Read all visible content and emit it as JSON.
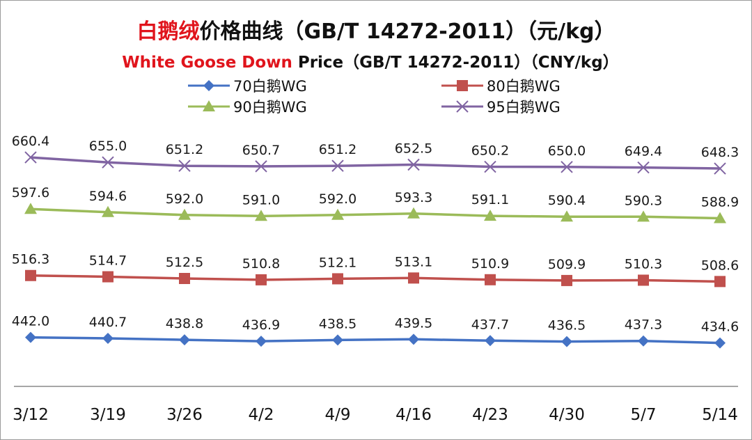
{
  "chart_data": {
    "type": "line",
    "title": {
      "line1_red": "白鹅绒",
      "line1_rest": "价格曲线（GB/T 14272-2011）（元/kg）",
      "line2_red": "White Goose Down",
      "line2_rest": " Price（GB/T 14272-2011）（CNY/kg）"
    },
    "categories": [
      "3/12",
      "3/19",
      "3/26",
      "4/2",
      "4/9",
      "4/16",
      "4/23",
      "4/30",
      "5/7",
      "5/14"
    ],
    "grid": false,
    "legend_position": "top",
    "ylim": [
      400,
      680
    ],
    "series": [
      {
        "name": "70白鹅WG",
        "color": "#4472c4",
        "marker": "diamond",
        "values": [
          442.0,
          440.7,
          438.8,
          436.9,
          438.5,
          439.5,
          437.7,
          436.5,
          437.3,
          434.6
        ],
        "labels": [
          "442.0",
          "440.7",
          "438.8",
          "436.9",
          "438.5",
          "439.5",
          "437.7",
          "436.5",
          "437.3",
          "434.6"
        ]
      },
      {
        "name": "80白鹅WG",
        "color": "#c0504d",
        "marker": "square",
        "values": [
          516.3,
          514.7,
          512.5,
          510.8,
          512.1,
          513.1,
          510.9,
          509.9,
          510.3,
          508.6
        ],
        "labels": [
          "516.3",
          "514.7",
          "512.5",
          "510.8",
          "512.1",
          "513.1",
          "510.9",
          "509.9",
          "510.3",
          "508.6"
        ]
      },
      {
        "name": "90白鹅WG",
        "color": "#9bbb59",
        "marker": "triangle",
        "values": [
          597.6,
          594.6,
          592.0,
          591.0,
          592.0,
          593.3,
          591.1,
          590.4,
          590.3,
          588.9
        ],
        "labels": [
          "597.6",
          "594.6",
          "592.0",
          "591.0",
          "592.0",
          "593.3",
          "591.1",
          "590.4",
          "590.3",
          "588.9"
        ]
      },
      {
        "name": "95白鹅WG",
        "color": "#8064a2",
        "marker": "x",
        "values": [
          660.4,
          655.0,
          651.2,
          650.7,
          651.2,
          652.5,
          650.2,
          650.0,
          649.4,
          648.3
        ],
        "labels": [
          "660.4",
          "655.0",
          "651.2",
          "650.7",
          "651.2",
          "652.5",
          "650.2",
          "650.0",
          "649.4",
          "648.3"
        ]
      }
    ]
  }
}
